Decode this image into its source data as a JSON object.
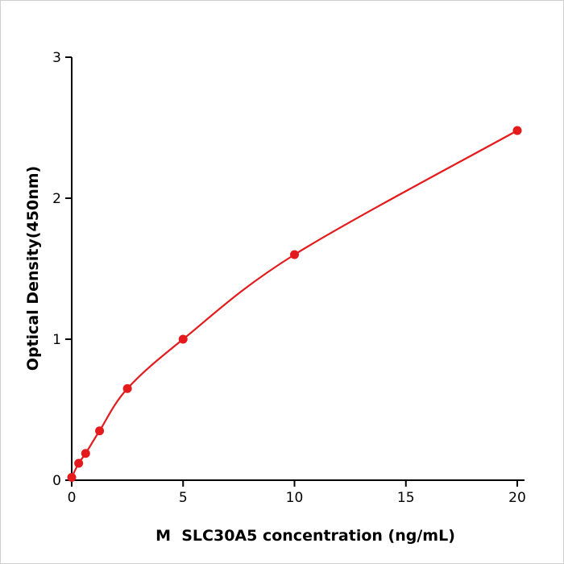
{
  "chart_data": {
    "type": "scatter",
    "title": "",
    "xlabel": "M  SLC30A5 concentration (ng/mL)",
    "ylabel": "Optical Density(450nm)",
    "x": [
      0,
      0.313,
      0.625,
      1.25,
      2.5,
      5,
      10,
      20
    ],
    "y": [
      0.02,
      0.12,
      0.19,
      0.35,
      0.65,
      1.0,
      1.6,
      2.48
    ],
    "xticks": [
      0,
      5,
      10,
      15,
      20
    ],
    "yticks": [
      0,
      1,
      2,
      3
    ],
    "xlim": [
      0,
      20
    ],
    "ylim": [
      0,
      3
    ],
    "grid": false,
    "legend_position": "none",
    "line_color": "#e41a1c",
    "marker_color": "#e41a1c",
    "axis_color": "#000000",
    "marker_radius": 5.5
  }
}
